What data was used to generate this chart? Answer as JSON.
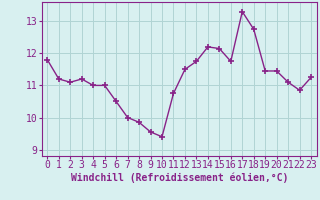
{
  "x": [
    0,
    1,
    2,
    3,
    4,
    5,
    6,
    7,
    8,
    9,
    10,
    11,
    12,
    13,
    14,
    15,
    16,
    17,
    18,
    19,
    20,
    21,
    22,
    23
  ],
  "y": [
    11.8,
    11.2,
    11.1,
    11.2,
    11.0,
    11.0,
    10.5,
    10.0,
    9.85,
    9.55,
    9.4,
    10.75,
    11.5,
    11.75,
    12.2,
    12.15,
    11.75,
    13.3,
    12.75,
    11.45,
    11.45,
    11.1,
    10.85,
    11.25
  ],
  "line_color": "#882288",
  "marker": "+",
  "markersize": 4,
  "markeredgewidth": 1.2,
  "linewidth": 1,
  "bg_color": "#d8f0f0",
  "grid_color": "#b0d4d4",
  "xlabel": "Windchill (Refroidissement éolien,°C)",
  "xlabel_fontsize": 7,
  "tick_fontsize": 7,
  "ylim": [
    8.8,
    13.6
  ],
  "xlim": [
    -0.5,
    23.5
  ],
  "yticks": [
    9,
    10,
    11,
    12,
    13
  ],
  "xticks": [
    0,
    1,
    2,
    3,
    4,
    5,
    6,
    7,
    8,
    9,
    10,
    11,
    12,
    13,
    14,
    15,
    16,
    17,
    18,
    19,
    20,
    21,
    22,
    23
  ]
}
